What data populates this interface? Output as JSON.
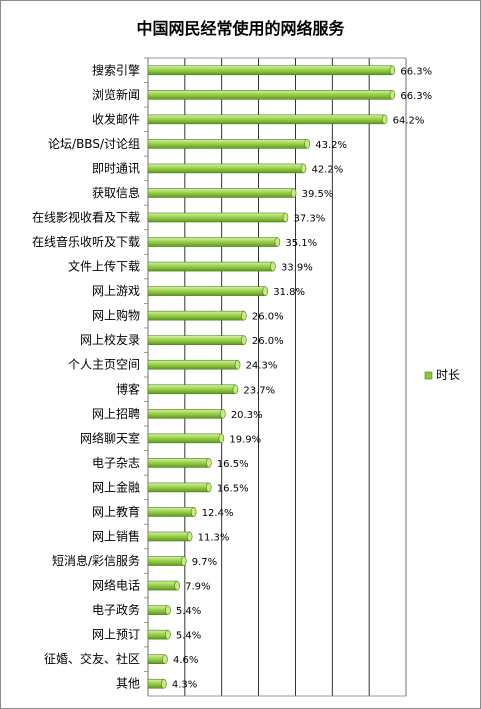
{
  "chart_data": {
    "type": "bar",
    "orientation": "horizontal",
    "title": "中国网民经常使用的网络服务",
    "xlabel": "",
    "ylabel": "",
    "categories": [
      "搜索引擎",
      "浏览新闻",
      "收发邮件",
      "论坛/BBS/讨论组",
      "即时通讯",
      "获取信息",
      "在线影视收看及下载",
      "在线音乐收听及下载",
      "文件上传下载",
      "网上游戏",
      "网上购物",
      "网上校友录",
      "个人主页空间",
      "博客",
      "网上招聘",
      "网络聊天室",
      "电子杂志",
      "网上金融",
      "网上教育",
      "网上销售",
      "短消息/彩信服务",
      "网络电话",
      "电子政务",
      "网上预订",
      "征婚、交友、社区",
      "其他"
    ],
    "series": [
      {
        "name": "时长",
        "values": [
          66.3,
          66.3,
          64.2,
          43.2,
          42.2,
          39.5,
          37.3,
          35.1,
          33.9,
          31.8,
          26.0,
          26.0,
          24.3,
          23.7,
          20.3,
          19.9,
          16.5,
          16.5,
          12.4,
          11.3,
          9.7,
          7.9,
          5.4,
          5.4,
          4.6,
          4.3
        ],
        "data_labels": [
          "66.3%",
          "66.3%",
          "64.2%",
          "43.2%",
          "42.2%",
          "39.5%",
          "37.3%",
          "35.1%",
          "33.9%",
          "31.8%",
          "26.0%",
          "26.0%",
          "24.3%",
          "23.7%",
          "20.3%",
          "19.9%",
          "16.5%",
          "16.5%",
          "12.4%",
          "11.3%",
          "9.7%",
          "7.9%",
          "5.4%",
          "5.4%",
          "4.6%",
          "4.3%"
        ],
        "color": "#8cc63f"
      }
    ],
    "xlim": [
      0,
      70
    ],
    "grid": true,
    "legend": "right"
  }
}
